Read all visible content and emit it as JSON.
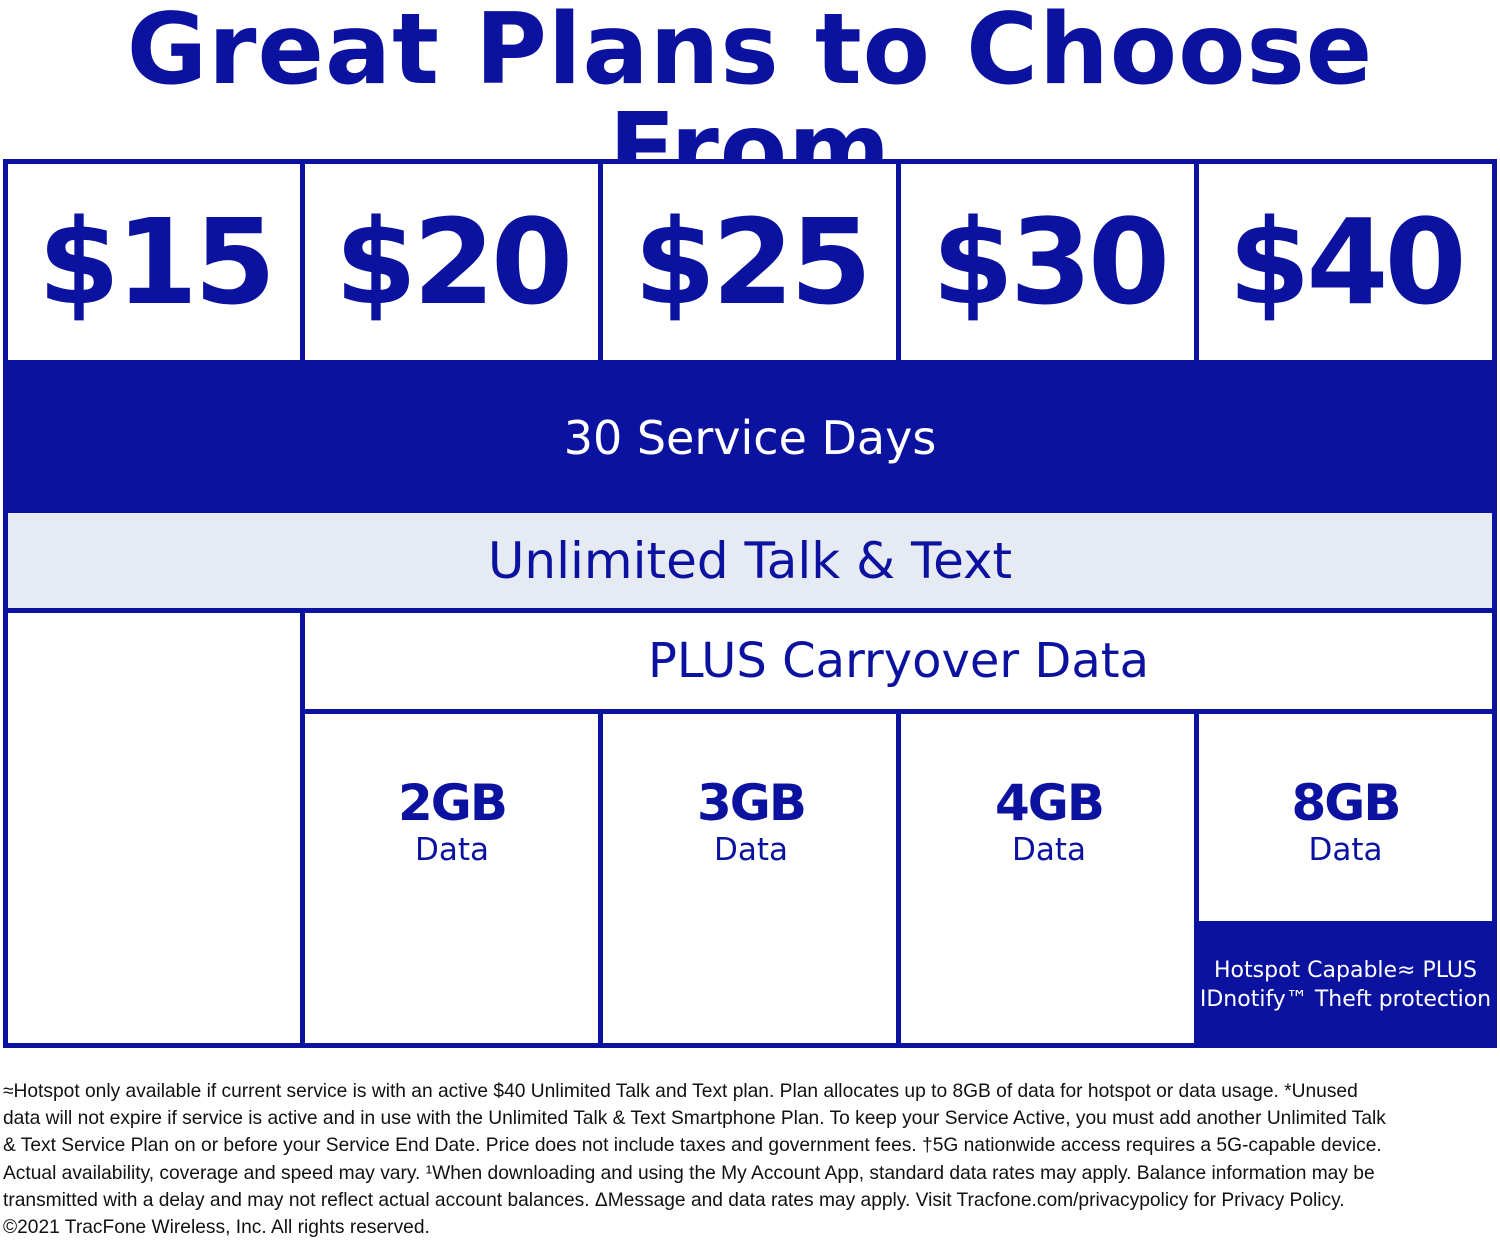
{
  "title": "Great Plans to Choose From",
  "prices": [
    "$15",
    "$20",
    "$25",
    "$30",
    "$40"
  ],
  "service_days": "30 Service Days",
  "talk_text": "Unlimited Talk & Text",
  "carryover": "PLUS Carryover Data",
  "data_plans": [
    {
      "amount": "2GB",
      "label": "Data"
    },
    {
      "amount": "3GB",
      "label": "Data"
    },
    {
      "amount": "4GB",
      "label": "Data"
    },
    {
      "amount": "8GB",
      "label": "Data"
    }
  ],
  "hotspot": {
    "line1": "Hotspot Capable≈ PLUS",
    "line2": "IDnotify™ Theft protection"
  },
  "footnote_lines": [
    "≈Hotspot only available if current service is with an active $40 Unlimited Talk and Text plan. Plan allocates up to 8GB of data for hotspot or data usage. *Unused",
    "data will not expire if service is active and in use with the Unlimited Talk & Text Smartphone Plan. To keep your Service Active, you must add another Unlimited Talk",
    "& Text Service Plan on or before your Service End Date. Price does not include taxes and government fees. †5G nationwide access requires a 5G-capable device.",
    "Actual availability, coverage and speed may vary. ¹When downloading and using the My Account App, standard data rates may apply. Balance information may be",
    "transmitted with a delay and may not reflect actual account balances. ΔMessage and data rates may apply. Visit Tracfone.com/privacypolicy for Privacy Policy.",
    "©2021 TracFone Wireless, Inc. All rights reserved."
  ],
  "colors": {
    "brand_blue": "#0b12a0",
    "light_band": "#e6eaf3"
  }
}
